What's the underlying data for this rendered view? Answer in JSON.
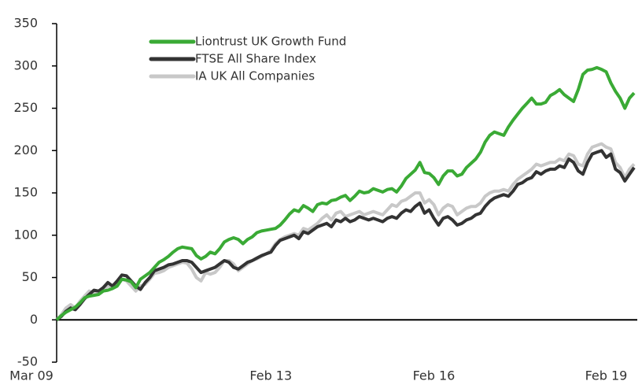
{
  "chart_data": {
    "type": "line",
    "categories": [
      "Mar 09",
      null,
      null,
      null,
      null,
      null,
      null,
      null,
      null,
      null,
      null,
      null,
      null,
      null,
      null,
      null,
      null,
      null,
      null,
      null,
      null,
      null,
      null,
      null,
      null,
      null,
      null,
      null,
      null,
      null,
      null,
      null,
      null,
      null,
      null,
      null,
      null,
      null,
      null,
      null,
      null,
      null,
      null,
      null,
      null,
      null,
      "Feb 13",
      null,
      null,
      null,
      null,
      null,
      null,
      null,
      null,
      null,
      null,
      null,
      null,
      null,
      null,
      null,
      null,
      null,
      null,
      null,
      null,
      null,
      null,
      null,
      null,
      null,
      null,
      null,
      null,
      null,
      null,
      null,
      null,
      null,
      null,
      "Feb 16",
      null,
      null,
      null,
      null,
      null,
      null,
      null,
      null,
      null,
      null,
      null,
      null,
      null,
      null,
      null,
      null,
      null,
      null,
      null,
      null,
      null,
      null,
      null,
      null,
      null,
      null,
      null,
      null,
      null,
      null,
      null,
      null,
      null,
      null,
      null,
      null,
      "Feb 19",
      null,
      null,
      null,
      null,
      null,
      null
    ],
    "series": [
      {
        "name": "Liontrust UK Growth Fund",
        "color": "#3aaa35",
        "values": [
          0,
          5,
          9,
          12,
          15,
          20,
          26,
          28,
          29,
          30,
          34,
          35,
          37,
          40,
          48,
          47,
          45,
          38,
          48,
          52,
          56,
          62,
          68,
          71,
          75,
          80,
          84,
          86,
          85,
          84,
          76,
          72,
          75,
          80,
          78,
          84,
          92,
          95,
          97,
          95,
          90,
          95,
          98,
          103,
          105,
          106,
          107,
          108,
          112,
          118,
          125,
          130,
          128,
          135,
          132,
          128,
          136,
          138,
          137,
          141,
          142,
          145,
          147,
          141,
          146,
          152,
          150,
          151,
          155,
          153,
          151,
          154,
          155,
          151,
          158,
          167,
          172,
          177,
          186,
          174,
          173,
          168,
          160,
          170,
          176,
          176,
          170,
          172,
          180,
          185,
          190,
          198,
          210,
          218,
          222,
          220,
          218,
          228,
          236,
          243,
          250,
          256,
          262,
          255,
          255,
          257,
          265,
          268,
          272,
          266,
          262,
          258,
          272,
          290,
          295,
          296,
          298,
          296,
          293,
          280,
          270,
          262,
          250,
          262,
          268
        ]
      },
      {
        "name": "FTSE All Share Index",
        "color": "#333333",
        "values": [
          0,
          4,
          10,
          14,
          12,
          18,
          25,
          30,
          35,
          34,
          38,
          44,
          40,
          46,
          53,
          52,
          46,
          40,
          36,
          44,
          50,
          58,
          60,
          62,
          65,
          66,
          68,
          70,
          70,
          68,
          62,
          56,
          58,
          60,
          62,
          66,
          70,
          68,
          62,
          60,
          64,
          68,
          70,
          73,
          76,
          78,
          80,
          88,
          94,
          96,
          98,
          100,
          96,
          104,
          102,
          106,
          110,
          112,
          114,
          110,
          118,
          116,
          120,
          116,
          118,
          122,
          120,
          118,
          120,
          118,
          116,
          120,
          122,
          120,
          126,
          130,
          128,
          134,
          138,
          126,
          130,
          120,
          112,
          120,
          122,
          118,
          112,
          114,
          118,
          120,
          124,
          126,
          134,
          140,
          144,
          146,
          148,
          146,
          152,
          160,
          162,
          166,
          168,
          175,
          172,
          176,
          178,
          178,
          182,
          180,
          190,
          186,
          176,
          172,
          186,
          196,
          198,
          200,
          192,
          196,
          178,
          174,
          164,
          172,
          180
        ]
      },
      {
        "name": "IA UK All Companies",
        "color": "#c8c8c8",
        "values": [
          0,
          6,
          14,
          18,
          14,
          22,
          28,
          34,
          32,
          30,
          36,
          40,
          38,
          42,
          48,
          46,
          40,
          34,
          40,
          42,
          48,
          55,
          56,
          58,
          62,
          64,
          66,
          68,
          67,
          60,
          50,
          46,
          56,
          54,
          56,
          62,
          70,
          70,
          66,
          58,
          62,
          66,
          70,
          72,
          75,
          78,
          82,
          90,
          95,
          98,
          100,
          102,
          100,
          108,
          106,
          110,
          114,
          120,
          124,
          118,
          126,
          128,
          122,
          124,
          126,
          128,
          124,
          126,
          128,
          126,
          124,
          130,
          136,
          134,
          140,
          142,
          146,
          150,
          150,
          138,
          142,
          136,
          124,
          132,
          136,
          134,
          124,
          128,
          132,
          134,
          134,
          138,
          146,
          150,
          152,
          152,
          154,
          152,
          160,
          166,
          170,
          174,
          178,
          184,
          182,
          184,
          186,
          186,
          190,
          188,
          196,
          194,
          184,
          182,
          196,
          204,
          206,
          208,
          204,
          202,
          186,
          180,
          168,
          178,
          184
        ]
      }
    ],
    "ylim": [
      -50,
      350
    ],
    "yticks": [
      -50,
      0,
      50,
      100,
      150,
      200,
      250,
      300,
      350
    ],
    "legend": "upper left"
  }
}
